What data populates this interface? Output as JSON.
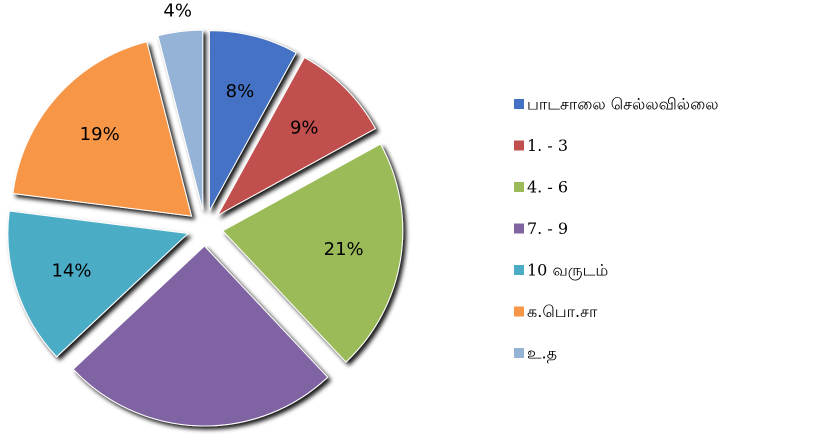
{
  "chart_data": {
    "type": "pie",
    "categories": [
      "பாடசாலை செல்லவில்லை",
      "1. - 3",
      "4. - 6",
      "7. - 9",
      "10 வருடம்",
      "க.பொ.சா",
      "உ.த"
    ],
    "values": [
      8,
      9,
      21,
      25,
      14,
      19,
      4
    ],
    "value_labels": [
      "8%",
      "9%",
      "21%",
      null,
      "14%",
      "19%",
      "4%"
    ],
    "colors": [
      "#4472c4",
      "#c0504d",
      "#9bbb59",
      "#8064a2",
      "#4bacc6",
      "#f79646",
      "#95b3d7"
    ],
    "legend": "right"
  }
}
